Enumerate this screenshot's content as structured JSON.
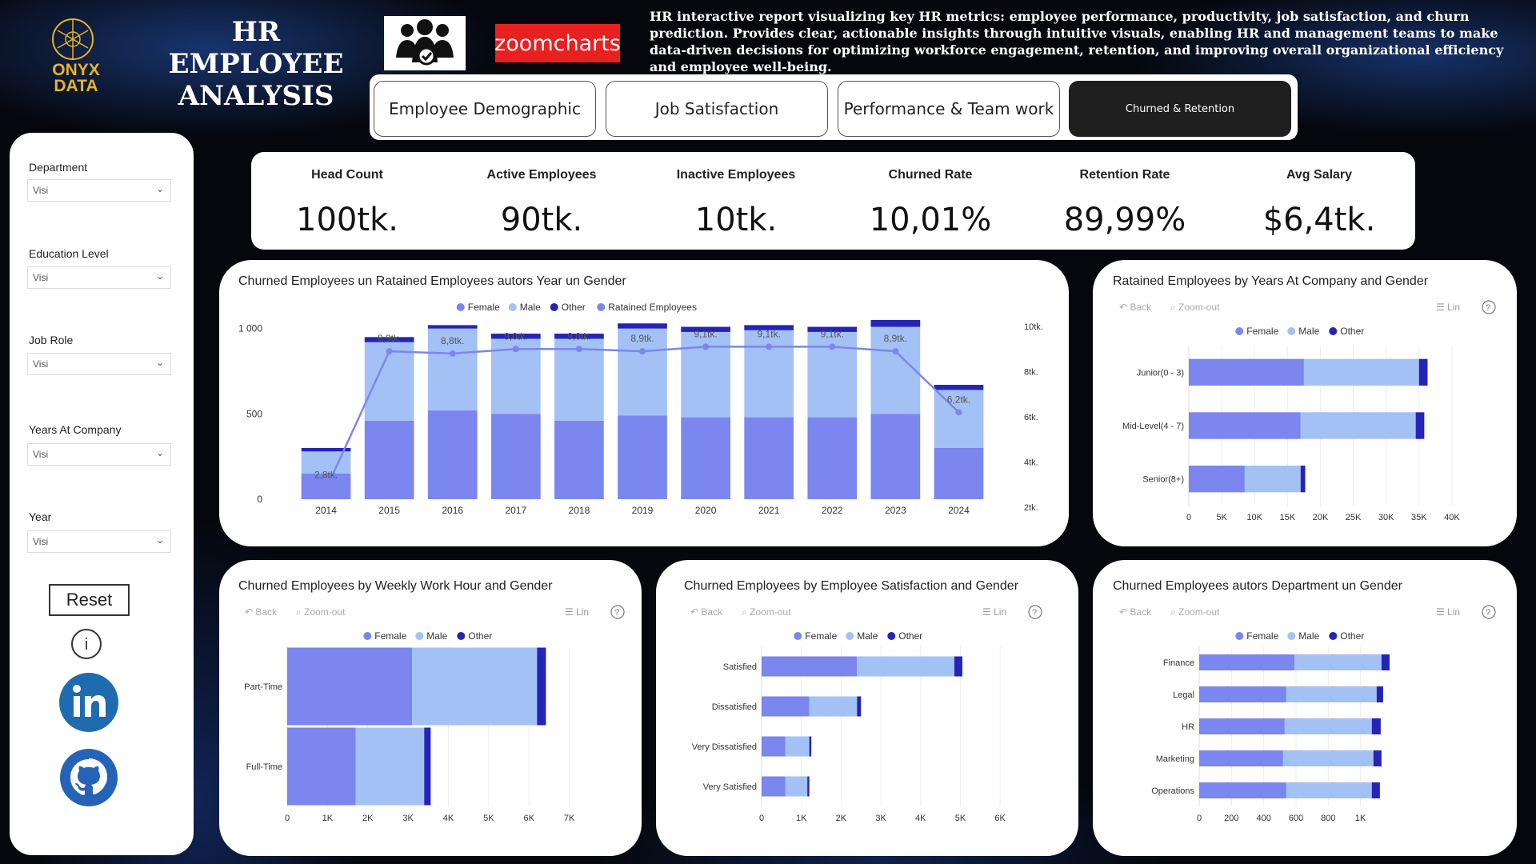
{
  "header": {
    "brand_line1": "ONYX",
    "brand_line2": "DATA",
    "title_line1": "HR EMPLOYEE",
    "title_line2": "ANALYSIS",
    "partner_logo": "zoomcharts",
    "description": "HR interactive report visualizing key HR metrics: employee performance, productivity, job satisfaction, and churn prediction. Provides clear, actionable insights through intuitive visuals, enabling HR and management teams to make data-driven decisions for optimizing workforce engagement, retention, and improving overall organizational efficiency and employee well-being."
  },
  "tabs": [
    {
      "label": "Employee Demographic"
    },
    {
      "label": "Job Satisfaction"
    },
    {
      "label": "Performance & Team work"
    },
    {
      "label": "Churned & Retention"
    }
  ],
  "filters": [
    {
      "label": "Department",
      "value": "Visi"
    },
    {
      "label": "Education Level",
      "value": "Visi"
    },
    {
      "label": "Job Role",
      "value": "Visi"
    },
    {
      "label": "Years At Company",
      "value": "Visi"
    },
    {
      "label": "Year",
      "value": "Visi"
    }
  ],
  "sidebar": {
    "reset_label": "Reset"
  },
  "kpis": [
    {
      "title": "Head Count",
      "value": "100tk."
    },
    {
      "title": "Active Employees",
      "value": "90tk."
    },
    {
      "title": "Inactive Employees",
      "value": "10tk."
    },
    {
      "title": "Churned Rate",
      "value": "10,01%"
    },
    {
      "title": "Retention Rate",
      "value": "89,99%"
    },
    {
      "title": "Avg Salary",
      "value": "$6,4tk."
    }
  ],
  "colors": {
    "female": "#7b86ee",
    "male": "#a3c1f5",
    "other": "#2424b8",
    "line": "#7b86ee"
  },
  "toolbar": {
    "back": "Back",
    "zoom_out": "Zoom-out",
    "lin": "Lin"
  },
  "chart_data": [
    {
      "id": "churn_year",
      "type": "bar",
      "title": "Churned Employees un Ratained Employees autors Year un Gender",
      "legend": [
        "Female",
        "Male",
        "Other",
        "Ratained Employees"
      ],
      "categories": [
        "2014",
        "2015",
        "2016",
        "2017",
        "2018",
        "2019",
        "2020",
        "2021",
        "2022",
        "2023",
        "2024"
      ],
      "series": [
        {
          "name": "Female",
          "values": [
            150,
            460,
            520,
            500,
            460,
            490,
            480,
            480,
            480,
            500,
            300
          ]
        },
        {
          "name": "Male",
          "values": [
            130,
            460,
            480,
            440,
            480,
            510,
            500,
            510,
            500,
            510,
            340
          ]
        },
        {
          "name": "Other",
          "values": [
            20,
            30,
            20,
            30,
            30,
            30,
            30,
            30,
            30,
            40,
            30
          ]
        },
        {
          "name": "Ratained Employees",
          "values": [
            2.8,
            8.9,
            8.8,
            9.0,
            9.0,
            8.9,
            9.1,
            9.1,
            9.1,
            8.9,
            6.2
          ]
        }
      ],
      "line_labels": [
        "2,8tk.",
        "8,9tk.",
        "8,8tk.",
        "9,0tk.",
        "9,0tk.",
        "8,9tk.",
        "9,1tk.",
        "9,1tk.",
        "9,1tk.",
        "8,9tk.",
        "6,2tk."
      ],
      "y_ticks": [
        "0",
        "500",
        "1 000"
      ],
      "y2_ticks": [
        "2tk.",
        "4tk.",
        "6tk.",
        "8tk.",
        "10tk."
      ],
      "ylim": [
        0,
        1050
      ],
      "y2lim": [
        2,
        10
      ]
    },
    {
      "id": "retained_years",
      "type": "bar",
      "orientation": "horizontal",
      "title": "Ratained Employees by Years At Company and Gender",
      "legend": [
        "Female",
        "Male",
        "Other"
      ],
      "categories": [
        "Junior(0 - 3)",
        "Mid-Level(4 - 7)",
        "Senior(8+)"
      ],
      "series": [
        {
          "name": "Female",
          "values": [
            17500,
            17000,
            8500
          ]
        },
        {
          "name": "Male",
          "values": [
            17500,
            17500,
            8500
          ]
        },
        {
          "name": "Other",
          "values": [
            1300,
            1300,
            700
          ]
        }
      ],
      "x_ticks": [
        "0",
        "5K",
        "10K",
        "15K",
        "20K",
        "25K",
        "30K",
        "35K",
        "40K"
      ],
      "xlim": [
        0,
        45000
      ]
    },
    {
      "id": "weekly_hours",
      "type": "bar",
      "orientation": "horizontal",
      "title": "Churned Employees by Weekly Work Hour and Gender",
      "legend": [
        "Female",
        "Male",
        "Other"
      ],
      "categories": [
        "Part-Time",
        "Full-Time"
      ],
      "series": [
        {
          "name": "Female",
          "values": [
            3100,
            1700
          ]
        },
        {
          "name": "Male",
          "values": [
            3100,
            1700
          ]
        },
        {
          "name": "Other",
          "values": [
            220,
            160
          ]
        }
      ],
      "x_ticks": [
        "0",
        "1K",
        "2K",
        "3K",
        "4K",
        "5K",
        "6K",
        "7K"
      ],
      "xlim": [
        0,
        8000
      ]
    },
    {
      "id": "satisfaction",
      "type": "bar",
      "orientation": "horizontal",
      "title": "Churned Employees by Employee Satisfaction and Gender",
      "legend": [
        "Female",
        "Male",
        "Other"
      ],
      "categories": [
        "Satisfied",
        "Dissatisfied",
        "Very Dissatisfied",
        "Very Satisfied"
      ],
      "series": [
        {
          "name": "Female",
          "values": [
            2400,
            1200,
            600,
            600
          ]
        },
        {
          "name": "Male",
          "values": [
            2450,
            1200,
            600,
            550
          ]
        },
        {
          "name": "Other",
          "values": [
            200,
            100,
            50,
            50
          ]
        }
      ],
      "x_ticks": [
        "0",
        "1K",
        "2K",
        "3K",
        "4K",
        "5K",
        "6K"
      ],
      "xlim": [
        0,
        6500
      ]
    },
    {
      "id": "department",
      "type": "bar",
      "orientation": "horizontal",
      "title": "Churned Employees autors Department un Gender",
      "legend": [
        "Female",
        "Male",
        "Other"
      ],
      "categories": [
        "Finance",
        "Legal",
        "HR",
        "Marketing",
        "Operations"
      ],
      "series": [
        {
          "name": "Female",
          "values": [
            590,
            540,
            530,
            520,
            540
          ]
        },
        {
          "name": "Male",
          "values": [
            540,
            560,
            540,
            560,
            530
          ]
        },
        {
          "name": "Other",
          "values": [
            50,
            40,
            55,
            50,
            50
          ]
        }
      ],
      "x_ticks": [
        "0",
        "200",
        "400",
        "600",
        "800",
        "1K"
      ],
      "xlim": [
        0,
        1200
      ]
    }
  ]
}
